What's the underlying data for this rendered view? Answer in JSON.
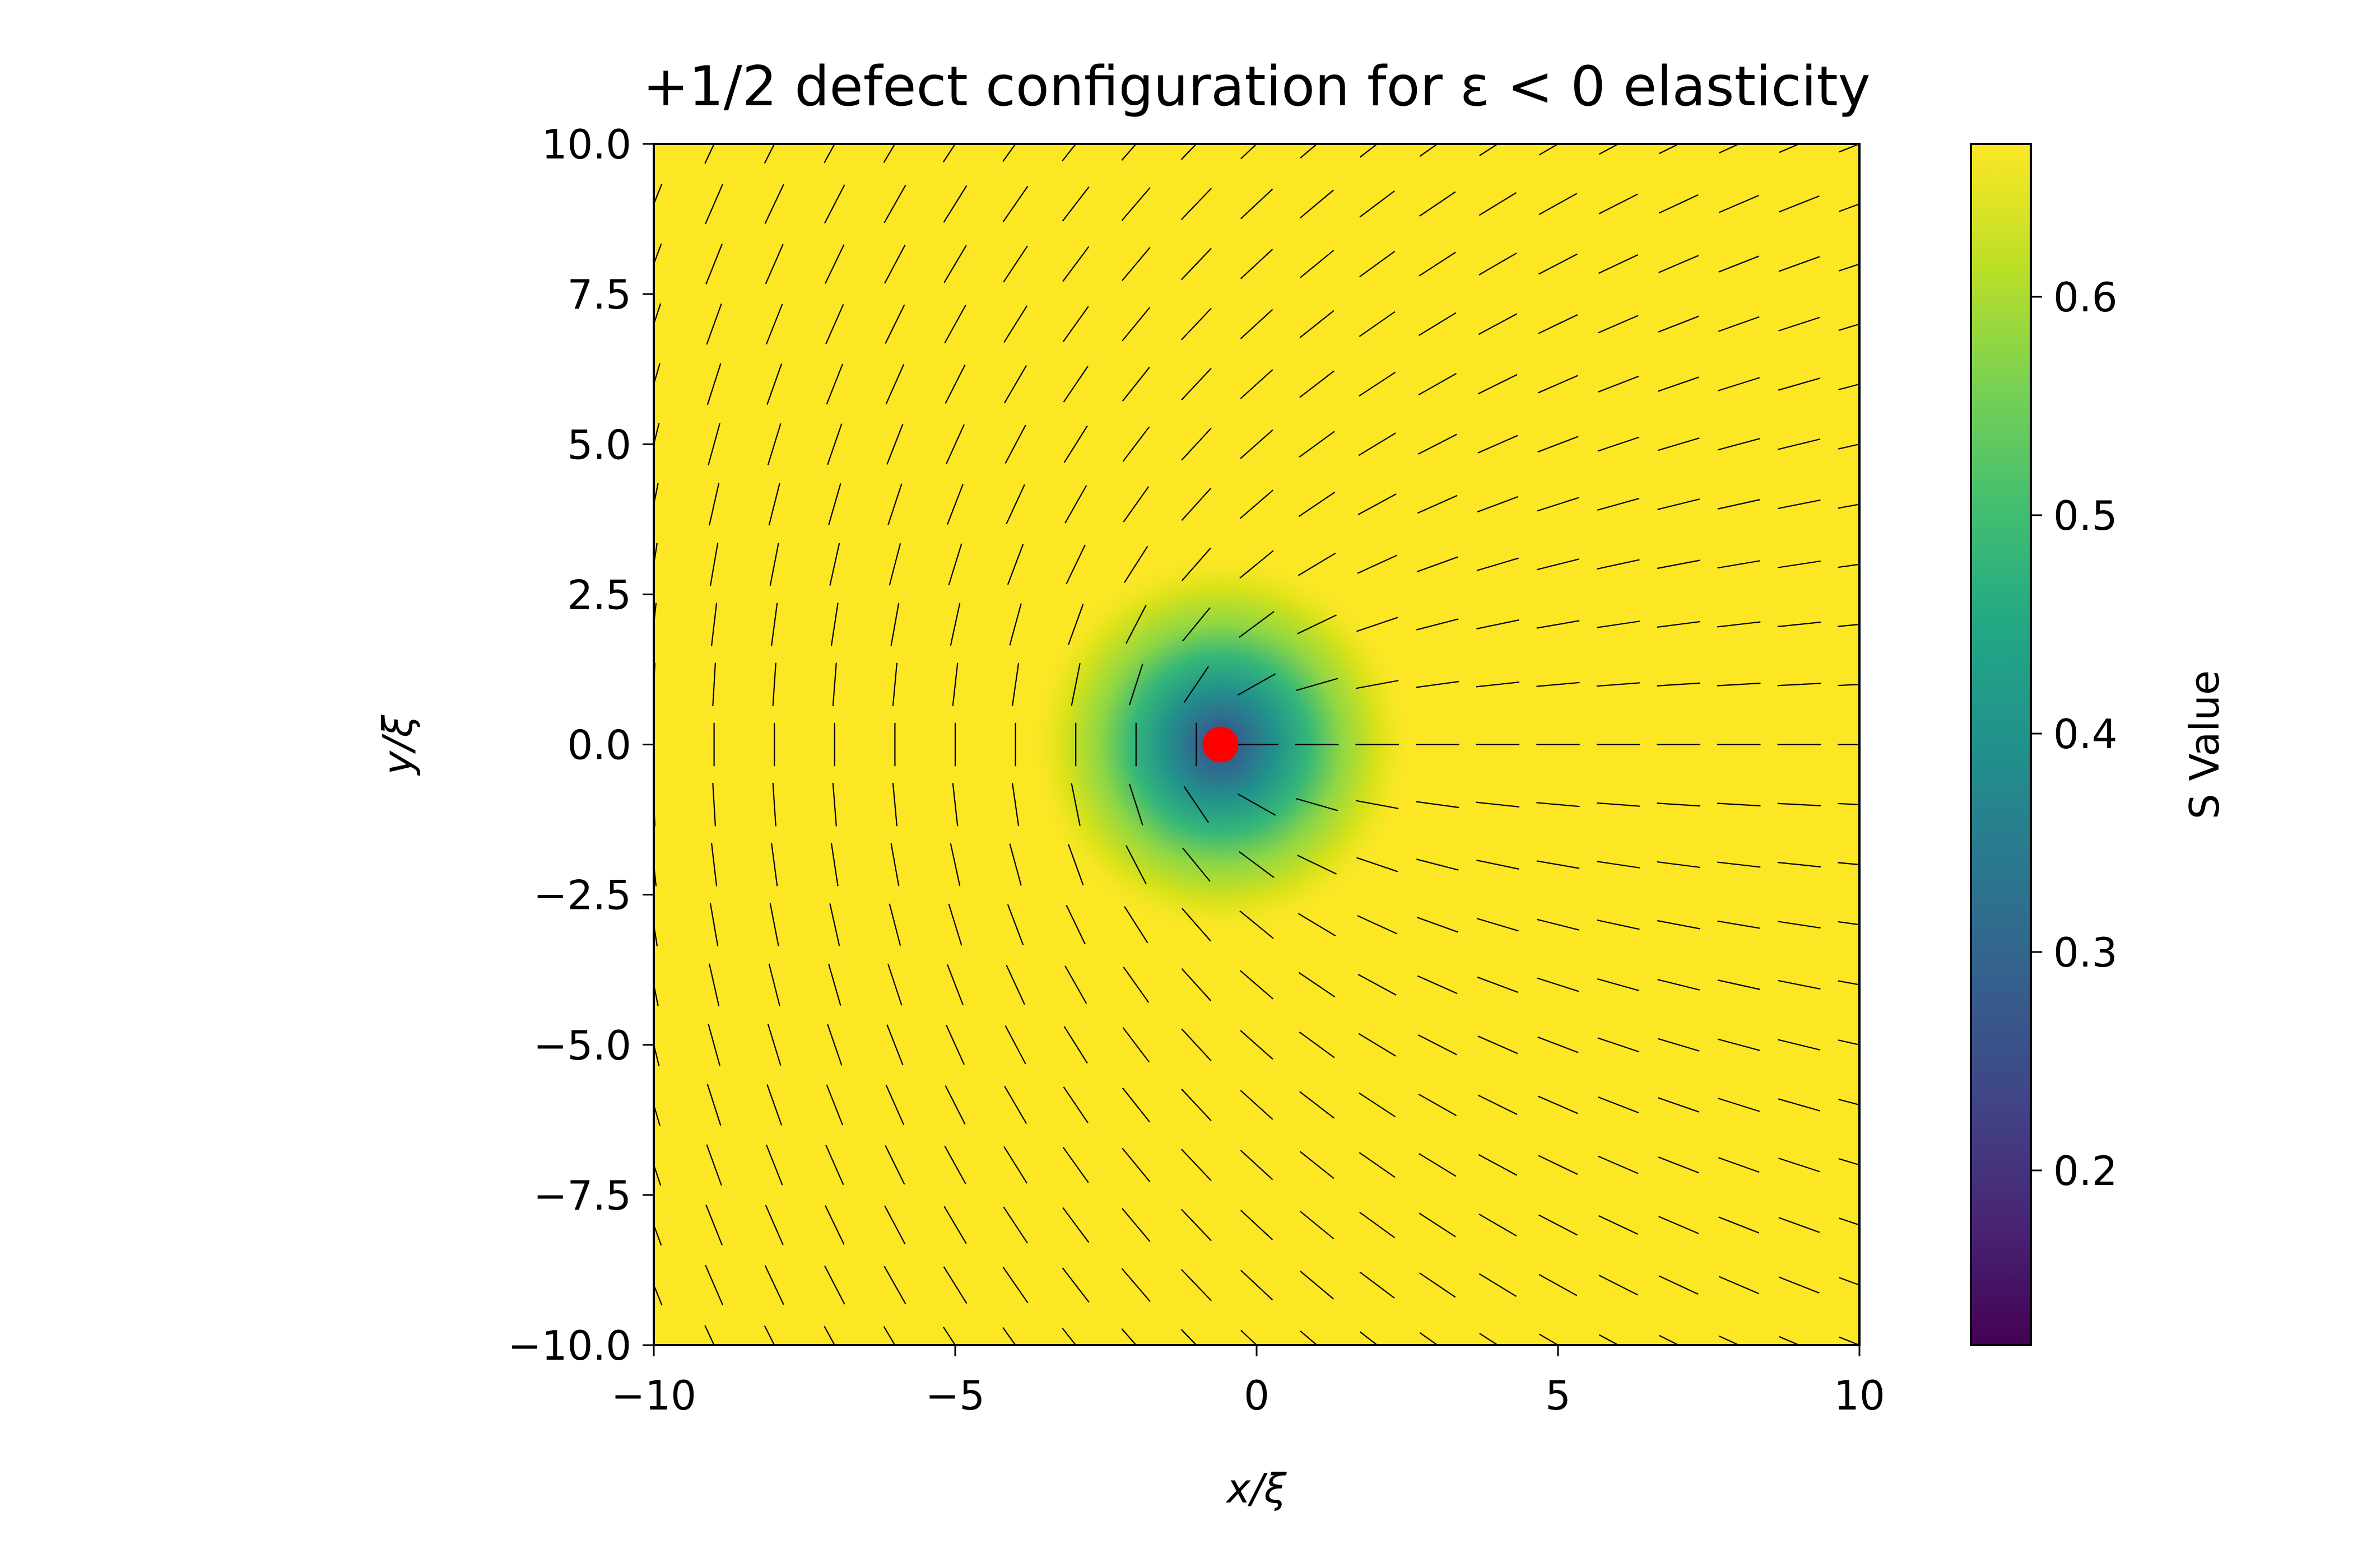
{
  "chart_data": {
    "type": "heatmap",
    "title": "+1/2 defect configuration for ε < 0 elasticity",
    "xlabel": "x/ξ",
    "ylabel": "y/ξ",
    "xlim": [
      -10,
      10
    ],
    "ylim": [
      -10,
      10
    ],
    "x_ticks": [
      -10,
      -5,
      0,
      5,
      10
    ],
    "x_tick_labels": [
      "−10",
      "−5",
      "0",
      "5",
      "10"
    ],
    "y_ticks": [
      10,
      7.5,
      5,
      2.5,
      0,
      -2.5,
      -5,
      -7.5,
      -10
    ],
    "y_tick_labels": [
      "10.0",
      "7.5",
      "5.0",
      "2.5",
      "0.0",
      "−2.5",
      "−5.0",
      "−7.5",
      "−10.0"
    ],
    "colormap": "viridis",
    "colorbar": {
      "label": "S Value",
      "range": [
        0.12,
        0.67
      ],
      "ticks": [
        0.6,
        0.5,
        0.4,
        0.3,
        0.2
      ],
      "tick_labels": [
        "0.6",
        "0.5",
        "0.4",
        "0.3",
        "0.2"
      ]
    },
    "s_field": {
      "bulk_value": 0.67,
      "core_value": 0.12,
      "core_radius": 1.3
    },
    "defect": {
      "charge": "+1/2",
      "x": -0.6,
      "y": 0.0,
      "marker_color": "#ff0000"
    },
    "director_field": {
      "grid_n": 21,
      "x_range": [
        -10,
        10
      ],
      "y_range": [
        -10,
        10
      ],
      "angle_rule": "theta = 0.5 * atan2(y - y0, x - x0)",
      "segment_color": "#000000"
    }
  }
}
